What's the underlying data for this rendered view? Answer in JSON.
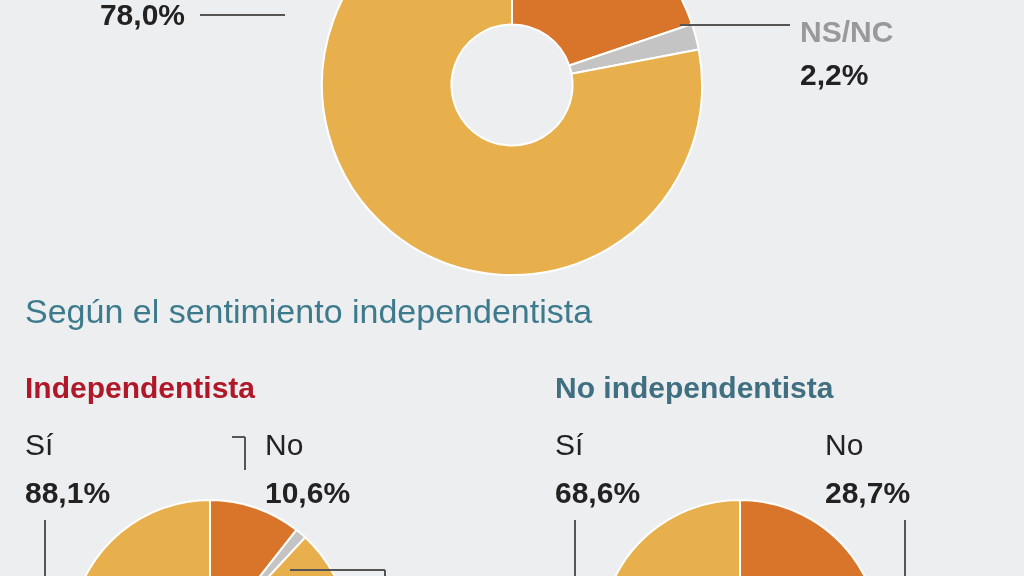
{
  "chart_data": [
    {
      "type": "donut",
      "categories": [
        null,
        "NS/NC",
        null
      ],
      "values": [
        19.8,
        2.2,
        78.0
      ],
      "colors": [
        "#d9752a",
        "#c4c4c4",
        "#e8b04c"
      ],
      "value_labels": [
        null,
        "2,2%",
        "78,0%"
      ]
    },
    {
      "type": "donut",
      "title": "Independentista",
      "annotations": [
        "Según el sentimiento independentista"
      ],
      "categories": [
        "No",
        null,
        "Sí"
      ],
      "values": [
        10.6,
        1.3,
        88.1
      ],
      "colors": [
        "#d9752a",
        "#c4c4c4",
        "#e8b04c"
      ],
      "value_labels": [
        "10,6%",
        null,
        "88,1%"
      ]
    },
    {
      "type": "donut",
      "title": "No independentista",
      "categories": [
        "No",
        null,
        "Sí"
      ],
      "values": [
        28.7,
        null,
        68.6
      ],
      "colors": [
        "#d9752a",
        "#c4c4c4",
        "#e8b04c"
      ],
      "value_labels": [
        "28,7%",
        null,
        "68,6%"
      ]
    }
  ]
}
